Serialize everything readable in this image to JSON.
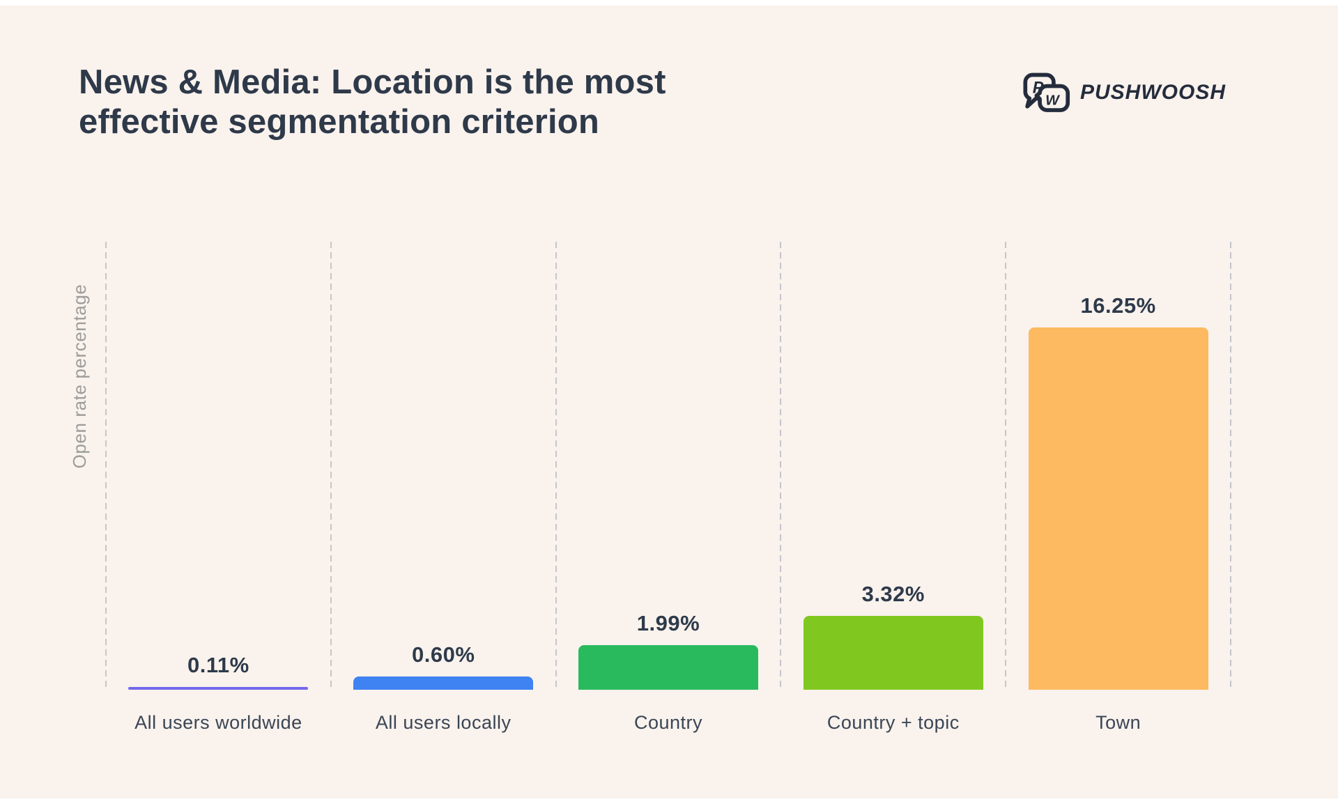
{
  "header": {
    "title_line1": "News & Media: Location is the most",
    "title_line2": "effective segmentation criterion",
    "brand": {
      "name": "PUSHWOOSH",
      "icon": "pushwoosh-speech-bubbles-icon",
      "icon_letters": [
        "P",
        "W"
      ],
      "color": "#242C3C"
    }
  },
  "chart_data": {
    "type": "bar",
    "title": "News & Media: Location is the most effective segmentation criterion",
    "xlabel": "",
    "ylabel": "Open rate percentage",
    "categories": [
      "All users worldwide",
      "All users locally",
      "Country",
      "Country + topic",
      "Town"
    ],
    "values": [
      0.11,
      0.6,
      1.99,
      3.32,
      16.25
    ],
    "value_labels": [
      "0.11%",
      "0.60%",
      "1.99%",
      "3.32%",
      "16.25%"
    ],
    "bar_colors": [
      "#7467EC",
      "#3F82F2",
      "#2ABA5E",
      "#80C820",
      "#FDBA60"
    ],
    "ylim": [
      0,
      18.5
    ],
    "grid": "dashed vertical separators between categories",
    "legend": "none"
  },
  "colors": {
    "background": "#F9F2ED",
    "edge_strips": "#FFFFFF",
    "title_text": "#2E3949",
    "value_label_text": "#2E3A4A",
    "category_label_text": "#3A4554",
    "axis_label_text": "#9C9C9A",
    "separator_line": "#C5C6CC"
  }
}
